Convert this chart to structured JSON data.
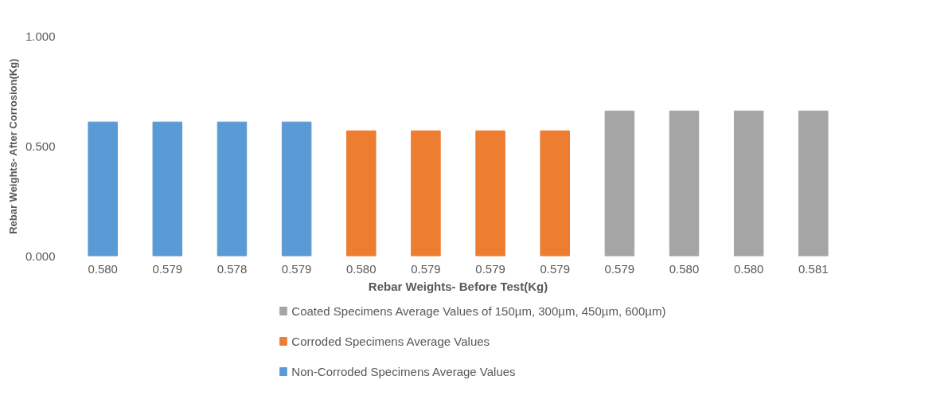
{
  "chart_data": {
    "type": "bar",
    "xlabel": "Rebar Weights- Before Test(Kg)",
    "ylabel": "Rebar Weights- After Corrosion(Kg)",
    "categories": [
      "0.580",
      "0.579",
      "0.578",
      "0.579",
      "0.580",
      "0.579",
      "0.579",
      "0.579",
      "0.579",
      "0.580",
      "0.580",
      "0.581"
    ],
    "series": [
      {
        "name": "Coated Specimens Average Values of 150µm, 300µm, 450µm, 600µm)",
        "color": "#a5a5a5",
        "values": [
          null,
          null,
          null,
          null,
          null,
          null,
          null,
          null,
          0.66,
          0.66,
          0.66,
          0.66
        ]
      },
      {
        "name": "Corroded Specimens Average Values",
        "color": "#ed7d31",
        "values": [
          null,
          null,
          null,
          null,
          0.57,
          0.57,
          0.57,
          0.57,
          null,
          null,
          null,
          null
        ]
      },
      {
        "name": "Non-Corroded Specimens Average Values",
        "color": "#5b9bd5",
        "values": [
          0.61,
          0.61,
          0.61,
          0.61,
          null,
          null,
          null,
          null,
          null,
          null,
          null,
          null
        ]
      }
    ],
    "ylim": [
      0,
      1
    ],
    "yticks": [
      {
        "value": 0,
        "label": "0.000"
      },
      {
        "value": 0.5,
        "label": "0.500"
      },
      {
        "value": 1,
        "label": "1.000"
      }
    ],
    "grid": false,
    "legend": "bottom"
  }
}
